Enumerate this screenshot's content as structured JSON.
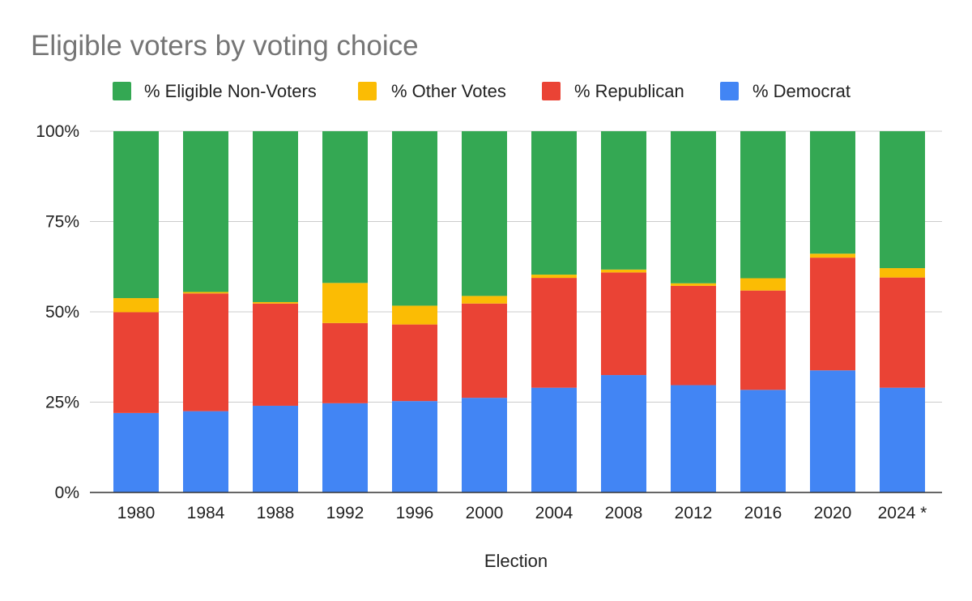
{
  "chart_data": {
    "type": "bar",
    "stacked": true,
    "title": "Eligible voters by voting choice",
    "xlabel": "Election",
    "ylabel": "",
    "ylim": [
      0,
      100
    ],
    "y_ticks": [
      0,
      25,
      50,
      75,
      100
    ],
    "y_tick_labels": [
      "0%",
      "25%",
      "50%",
      "75%",
      "100%"
    ],
    "grid": true,
    "legend_position": "top",
    "categories": [
      "1980",
      "1984",
      "1988",
      "1992",
      "1996",
      "2000",
      "2004",
      "2008",
      "2012",
      "2016",
      "2020",
      "2024 *"
    ],
    "series": [
      {
        "name": "% Democrat",
        "color": "#4285F4",
        "values": [
          22.0,
          22.5,
          24.0,
          24.7,
          25.3,
          26.2,
          29.0,
          32.5,
          29.7,
          28.4,
          33.8,
          29.0
        ]
      },
      {
        "name": "% Republican",
        "color": "#EA4335",
        "values": [
          27.9,
          32.6,
          28.3,
          22.2,
          21.2,
          26.1,
          30.4,
          28.4,
          27.5,
          27.5,
          31.2,
          30.5
        ]
      },
      {
        "name": "% Other Votes",
        "color": "#FBBC04",
        "values": [
          3.9,
          0.4,
          0.4,
          11.1,
          5.2,
          2.1,
          0.9,
          0.8,
          0.7,
          3.4,
          1.1,
          2.6
        ]
      },
      {
        "name": "% Eligible Non-Voters",
        "color": "#34A853",
        "values": [
          46.2,
          44.5,
          47.3,
          42.0,
          48.3,
          45.6,
          39.7,
          38.3,
          42.1,
          40.7,
          33.9,
          37.9
        ]
      }
    ],
    "legend_order": [
      "% Eligible Non-Voters",
      "% Other Votes",
      "% Republican",
      "% Democrat"
    ]
  }
}
